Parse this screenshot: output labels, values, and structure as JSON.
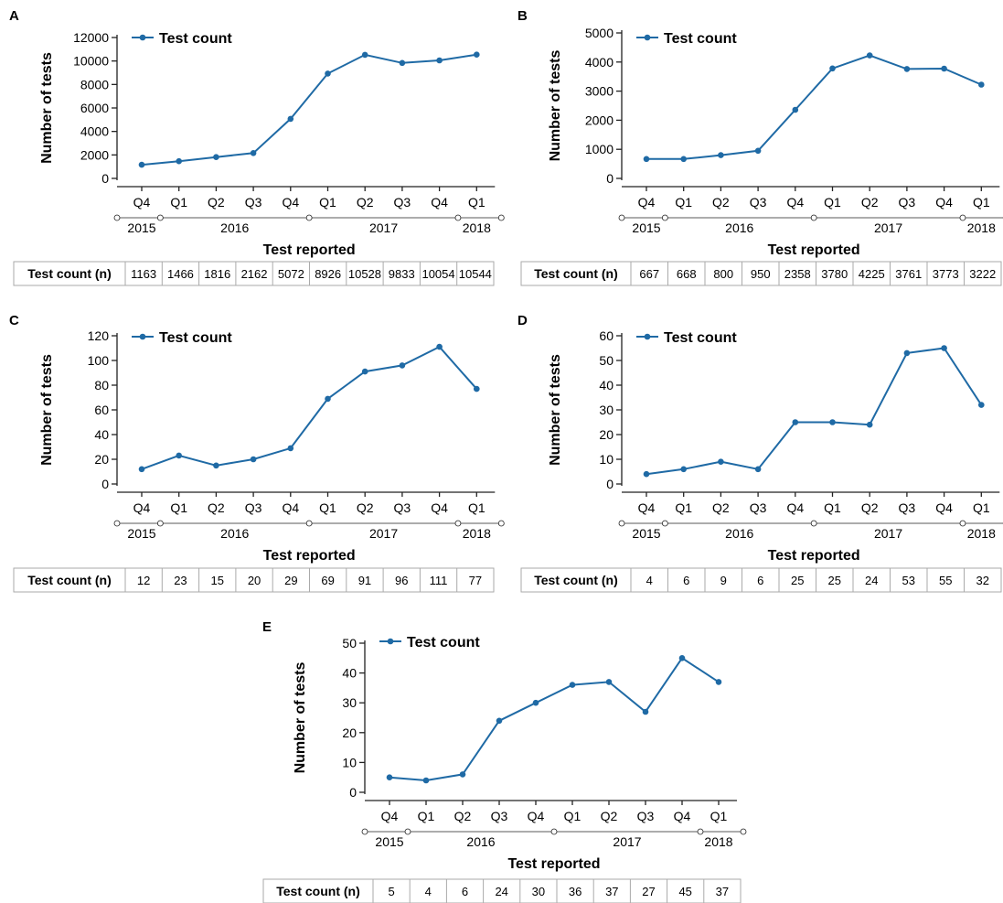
{
  "figure": {
    "colors": {
      "series": "#1f6aa5",
      "axis": "#222222",
      "table_border": "#aaaaaa"
    }
  },
  "chart_data": [
    {
      "panel": "A",
      "type": "line",
      "categories": [
        "Q4",
        "Q1",
        "Q2",
        "Q3",
        "Q4",
        "Q1",
        "Q2",
        "Q3",
        "Q4",
        "Q1"
      ],
      "years": [
        {
          "label": "2015",
          "from": 0,
          "to": 0
        },
        {
          "label": "2016",
          "from": 1,
          "to": 4
        },
        {
          "label": "2017",
          "from": 5,
          "to": 8
        },
        {
          "label": "2018",
          "from": 9,
          "to": 9
        }
      ],
      "series": [
        {
          "name": "Test count",
          "values": [
            1163,
            1466,
            1816,
            2162,
            5072,
            8926,
            10528,
            9833,
            10054,
            10544
          ]
        }
      ],
      "xlabel": "Test reported",
      "ylabel": "Number of tests",
      "ylim": [
        0,
        12000
      ],
      "yticks": [
        0,
        2000,
        4000,
        6000,
        8000,
        10000,
        12000
      ],
      "legend": "top-left",
      "grid": false,
      "table": {
        "label": "Test count (n)",
        "values": [
          "1163",
          "1466",
          "1816",
          "2162",
          "5072",
          "8926",
          "10528",
          "9833",
          "10054",
          "10544"
        ]
      }
    },
    {
      "panel": "B",
      "type": "line",
      "categories": [
        "Q4",
        "Q1",
        "Q2",
        "Q3",
        "Q4",
        "Q1",
        "Q2",
        "Q3",
        "Q4",
        "Q1"
      ],
      "years": [
        {
          "label": "2015",
          "from": 0,
          "to": 0
        },
        {
          "label": "2016",
          "from": 1,
          "to": 4
        },
        {
          "label": "2017",
          "from": 5,
          "to": 8
        },
        {
          "label": "2018",
          "from": 9,
          "to": 9
        }
      ],
      "series": [
        {
          "name": "Test count",
          "values": [
            667,
            668,
            800,
            950,
            2358,
            3780,
            4225,
            3761,
            3773,
            3222
          ]
        }
      ],
      "xlabel": "Test reported",
      "ylabel": "Number of tests",
      "ylim": [
        0,
        5000
      ],
      "yticks": [
        0,
        1000,
        2000,
        3000,
        4000,
        5000
      ],
      "legend": "top-left",
      "grid": false,
      "table": {
        "label": "Test count (n)",
        "values": [
          "667",
          "668",
          "800",
          "950",
          "2358",
          "3780",
          "4225",
          "3761",
          "3773",
          "3222"
        ]
      }
    },
    {
      "panel": "C",
      "type": "line",
      "categories": [
        "Q4",
        "Q1",
        "Q2",
        "Q3",
        "Q4",
        "Q1",
        "Q2",
        "Q3",
        "Q4",
        "Q1"
      ],
      "years": [
        {
          "label": "2015",
          "from": 0,
          "to": 0
        },
        {
          "label": "2016",
          "from": 1,
          "to": 4
        },
        {
          "label": "2017",
          "from": 5,
          "to": 8
        },
        {
          "label": "2018",
          "from": 9,
          "to": 9
        }
      ],
      "series": [
        {
          "name": "Test count",
          "values": [
            12,
            23,
            15,
            20,
            29,
            69,
            91,
            96,
            111,
            77
          ]
        }
      ],
      "xlabel": "Test reported",
      "ylabel": "Number of tests",
      "ylim": [
        0,
        120
      ],
      "yticks": [
        0,
        20,
        40,
        60,
        80,
        100,
        120
      ],
      "legend": "top-left",
      "grid": false,
      "table": {
        "label": "Test count (n)",
        "values": [
          "12",
          "23",
          "15",
          "20",
          "29",
          "69",
          "91",
          "96",
          "111",
          "77"
        ]
      }
    },
    {
      "panel": "D",
      "type": "line",
      "categories": [
        "Q4",
        "Q1",
        "Q2",
        "Q3",
        "Q4",
        "Q1",
        "Q2",
        "Q3",
        "Q4",
        "Q1"
      ],
      "years": [
        {
          "label": "2015",
          "from": 0,
          "to": 0
        },
        {
          "label": "2016",
          "from": 1,
          "to": 4
        },
        {
          "label": "2017",
          "from": 5,
          "to": 8
        },
        {
          "label": "2018",
          "from": 9,
          "to": 9
        }
      ],
      "series": [
        {
          "name": "Test count",
          "values": [
            4,
            6,
            9,
            6,
            25,
            25,
            24,
            53,
            55,
            32
          ]
        }
      ],
      "xlabel": "Test reported",
      "ylabel": "Number of tests",
      "ylim": [
        0,
        60
      ],
      "yticks": [
        0,
        10,
        20,
        30,
        40,
        50,
        60
      ],
      "legend": "top-left",
      "grid": false,
      "table": {
        "label": "Test count (n)",
        "values": [
          "4",
          "6",
          "9",
          "6",
          "25",
          "25",
          "24",
          "53",
          "55",
          "32"
        ]
      }
    },
    {
      "panel": "E",
      "type": "line",
      "categories": [
        "Q4",
        "Q1",
        "Q2",
        "Q3",
        "Q4",
        "Q1",
        "Q2",
        "Q3",
        "Q4",
        "Q1"
      ],
      "years": [
        {
          "label": "2015",
          "from": 0,
          "to": 0
        },
        {
          "label": "2016",
          "from": 1,
          "to": 4
        },
        {
          "label": "2017",
          "from": 5,
          "to": 8
        },
        {
          "label": "2018",
          "from": 9,
          "to": 9
        }
      ],
      "series": [
        {
          "name": "Test count",
          "values": [
            5,
            4,
            6,
            24,
            30,
            36,
            37,
            27,
            45,
            37
          ]
        }
      ],
      "xlabel": "Test reported",
      "ylabel": "Number of tests",
      "ylim": [
        0,
        50
      ],
      "yticks": [
        0,
        10,
        20,
        30,
        40,
        50
      ],
      "legend": "top-left",
      "grid": false,
      "table": {
        "label": "Test count (n)",
        "values": [
          "5",
          "4",
          "6",
          "24",
          "30",
          "36",
          "37",
          "27",
          "45",
          "37"
        ]
      }
    }
  ]
}
